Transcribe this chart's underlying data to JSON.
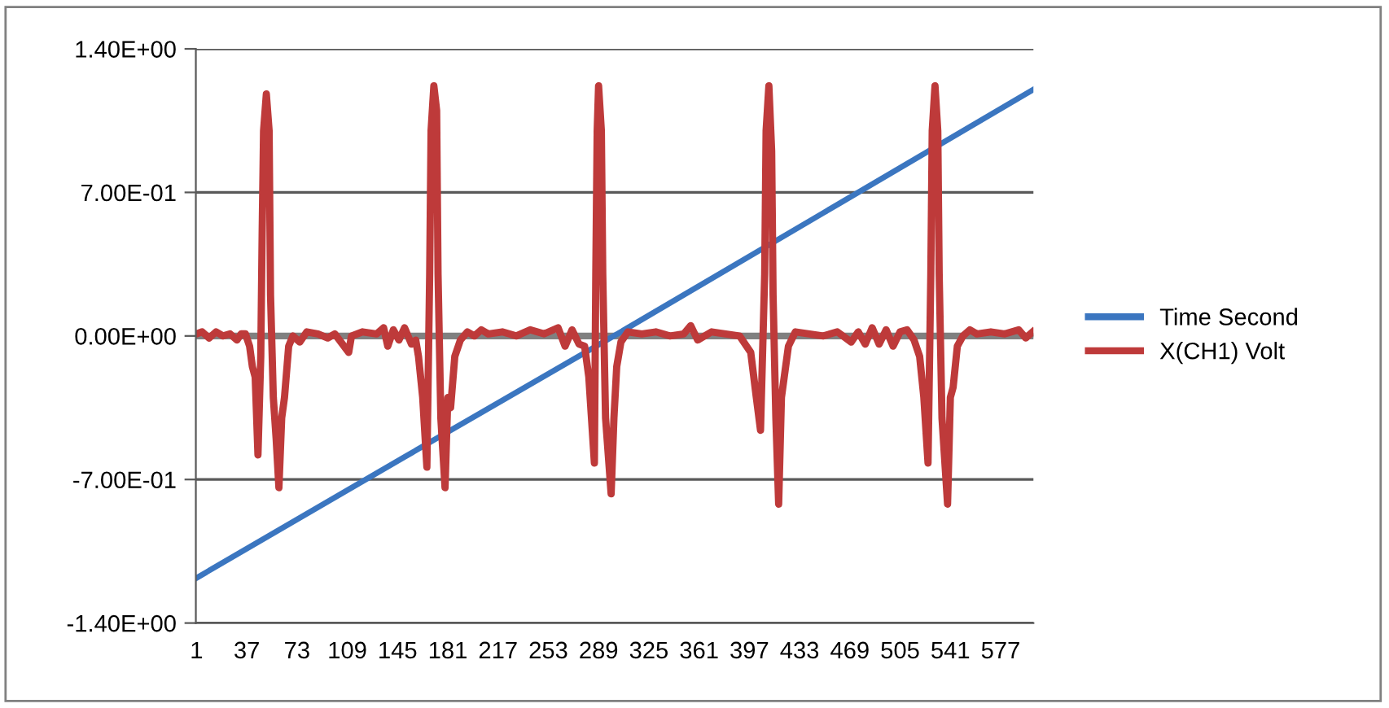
{
  "chart_data": {
    "type": "line",
    "xlim": [
      0.5,
      600.5
    ],
    "xticks": [
      1,
      37,
      73,
      109,
      145,
      181,
      217,
      253,
      289,
      325,
      361,
      397,
      433,
      469,
      505,
      541,
      577
    ],
    "ylim": [
      -1.4,
      1.4
    ],
    "yticks": [
      {
        "value": -1.4,
        "label": "-1.40E+00"
      },
      {
        "value": -0.7,
        "label": "-7.00E-01"
      },
      {
        "value": 0,
        "label": "0.00E+00"
      },
      {
        "value": 0.7,
        "label": "7.00E-01"
      },
      {
        "value": 1.4,
        "label": "1.40E+00"
      }
    ],
    "grid": "y",
    "legend": "right",
    "marker": "none",
    "line_style": "solid",
    "ref_lines": [
      {
        "axis": "y",
        "value": 0,
        "color": "#808080"
      }
    ],
    "series": [
      {
        "name": "Time Second",
        "color": "#3b76c0",
        "x": [
          1,
          150,
          300,
          450,
          600
        ],
        "values": [
          -1.18,
          -0.59,
          0.0,
          0.6,
          1.2
        ]
      },
      {
        "name": "X(CH1) Volt",
        "color": "#be3a3a",
        "x": [
          1,
          5,
          10,
          15,
          20,
          25,
          30,
          33,
          36,
          39,
          41,
          43,
          45,
          47,
          48,
          49,
          51,
          53,
          54,
          56,
          58,
          60,
          62,
          64,
          67,
          70,
          75,
          80,
          88,
          95,
          100,
          110,
          112,
          120,
          130,
          135,
          138,
          142,
          146,
          150,
          155,
          158,
          160,
          163,
          166,
          168,
          169,
          171,
          173,
          174,
          176,
          179,
          181,
          183,
          186,
          190,
          195,
          200,
          205,
          210,
          220,
          230,
          240,
          250,
          260,
          265,
          270,
          275,
          279,
          282,
          286,
          287,
          288,
          289,
          291,
          292,
          294,
          298,
          300,
          302,
          305,
          310,
          320,
          330,
          340,
          350,
          355,
          360,
          370,
          380,
          390,
          398,
          402,
          405,
          408,
          409,
          411,
          413,
          414,
          416,
          418,
          420,
          422,
          425,
          430,
          440,
          450,
          460,
          470,
          475,
          480,
          485,
          490,
          495,
          500,
          505,
          510,
          515,
          519,
          522,
          525,
          527,
          528,
          530,
          532,
          533,
          535,
          539,
          541,
          543,
          546,
          550,
          555,
          560,
          570,
          580,
          590,
          595,
          600
        ],
        "values": [
          0.01,
          0.02,
          -0.01,
          0.02,
          0.0,
          0.01,
          -0.02,
          0.01,
          0.01,
          -0.05,
          -0.15,
          -0.2,
          -0.58,
          -0.1,
          0.5,
          1.0,
          1.18,
          1.0,
          0.2,
          -0.3,
          -0.5,
          -0.74,
          -0.4,
          -0.3,
          -0.05,
          0.0,
          -0.03,
          0.02,
          0.01,
          -0.01,
          0.01,
          -0.08,
          0.0,
          0.02,
          0.01,
          0.04,
          -0.05,
          0.03,
          -0.02,
          0.04,
          -0.04,
          -0.02,
          -0.1,
          -0.3,
          -0.64,
          0.3,
          1.0,
          1.22,
          1.1,
          0.3,
          -0.4,
          -0.74,
          -0.3,
          -0.35,
          -0.1,
          -0.02,
          0.02,
          0.0,
          0.03,
          0.01,
          0.02,
          0.0,
          0.03,
          0.01,
          0.04,
          -0.05,
          0.03,
          -0.04,
          -0.05,
          -0.2,
          -0.62,
          0.3,
          1.0,
          1.22,
          1.0,
          0.3,
          -0.4,
          -0.77,
          -0.4,
          -0.15,
          -0.03,
          0.02,
          0.01,
          0.02,
          0.0,
          0.01,
          0.05,
          -0.02,
          0.02,
          0.01,
          0.0,
          -0.08,
          -0.3,
          -0.46,
          0.3,
          1.0,
          1.22,
          0.9,
          0.2,
          -0.4,
          -0.82,
          -0.3,
          -0.2,
          -0.05,
          0.02,
          0.01,
          0.0,
          0.02,
          -0.03,
          0.02,
          -0.04,
          0.04,
          -0.04,
          0.03,
          -0.05,
          0.02,
          0.03,
          -0.02,
          -0.1,
          -0.3,
          -0.62,
          0.3,
          1.0,
          1.22,
          1.0,
          0.3,
          -0.4,
          -0.82,
          -0.3,
          -0.25,
          -0.05,
          0.0,
          0.03,
          0.01,
          0.02,
          0.01,
          0.03,
          -0.01,
          0.02
        ]
      }
    ]
  }
}
